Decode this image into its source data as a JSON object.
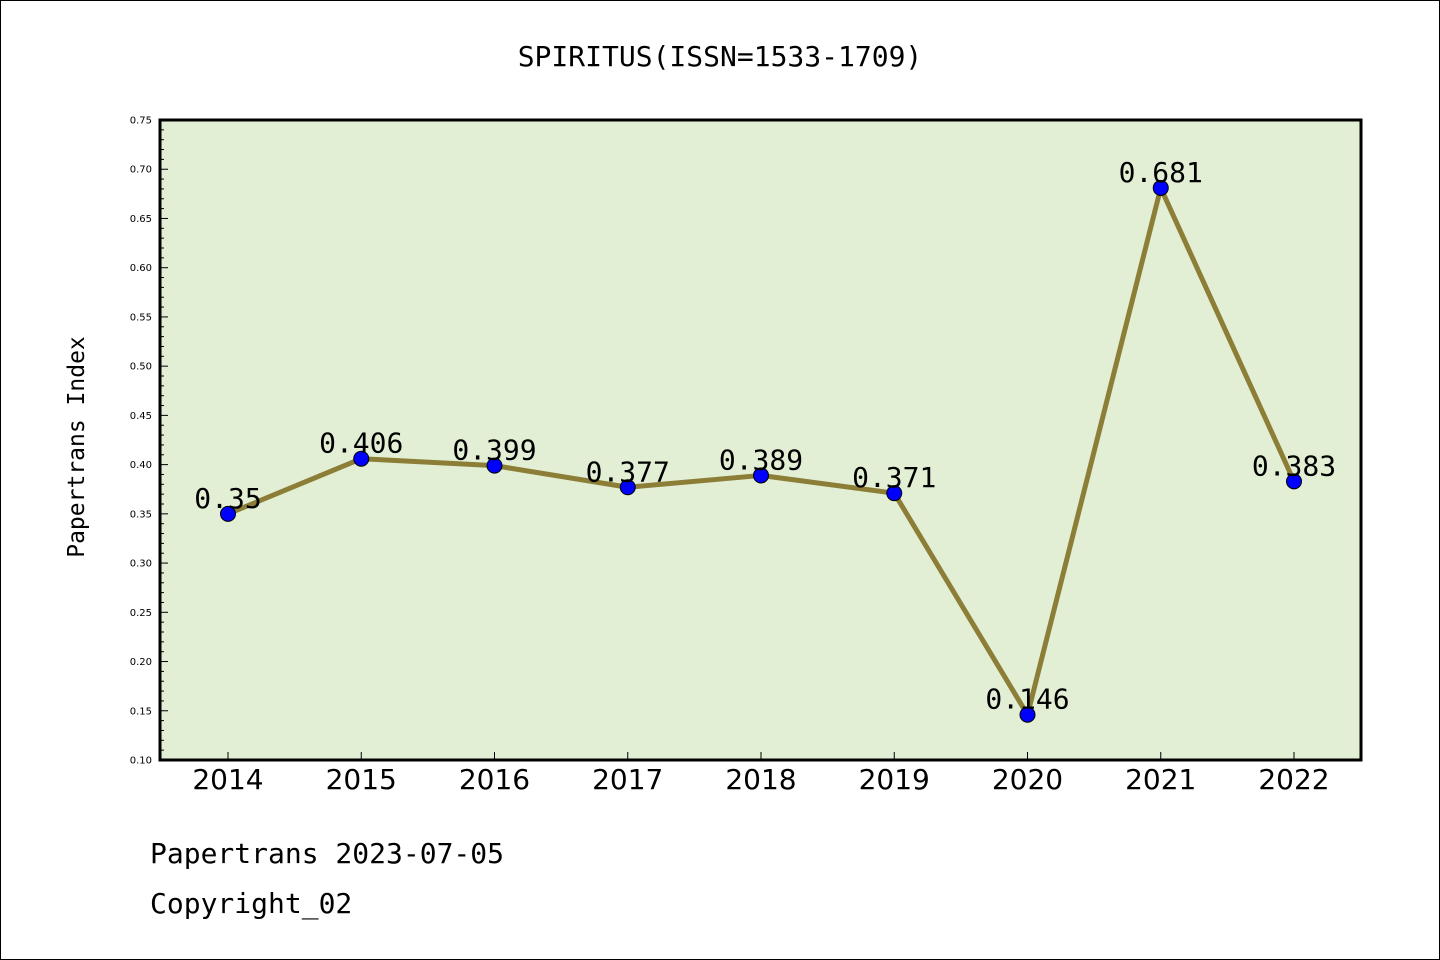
{
  "chart_data": {
    "type": "line",
    "title": "SPIRITUS(ISSN=1533-1709)",
    "xlabel": "",
    "ylabel": "Papertrans Index",
    "categories": [
      "2014",
      "2015",
      "2016",
      "2017",
      "2018",
      "2019",
      "2020",
      "2021",
      "2022"
    ],
    "series": [
      {
        "values": [
          0.35,
          0.406,
          0.399,
          0.377,
          0.389,
          0.371,
          0.146,
          0.681,
          0.383
        ],
        "data_labels": [
          "0.35",
          "0.406",
          "0.399",
          "0.377",
          "0.389",
          "0.371",
          "0.146",
          "0.681",
          "0.383"
        ]
      }
    ],
    "ylim": [
      0.1,
      0.75
    ],
    "yticks": [
      "0.10",
      "0.15",
      "0.20",
      "0.25",
      "0.30",
      "0.35",
      "0.40",
      "0.45",
      "0.50",
      "0.55",
      "0.60",
      "0.65",
      "0.70",
      "0.75"
    ],
    "grid": false,
    "colors": {
      "plot_background": "#e2efd5",
      "line": "#8c7e37",
      "marker": "#0000ff"
    }
  },
  "footer": {
    "line1": "Papertrans 2023-07-05",
    "line2": "Copyright_02"
  }
}
